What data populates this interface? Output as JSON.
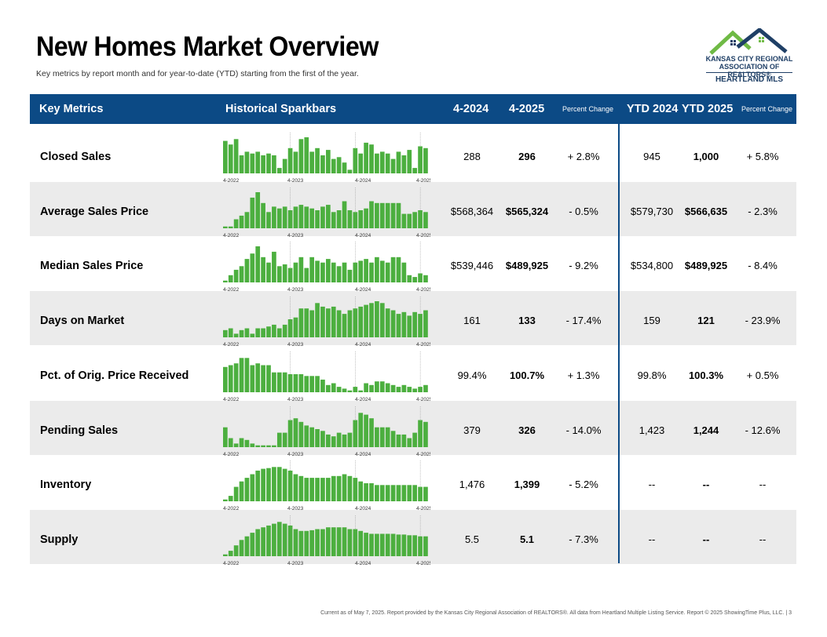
{
  "page": {
    "title": "New Homes Market Overview",
    "subtitle": "Key metrics by report month and for year-to-date (YTD) starting from the first of the year.",
    "footer": "Current as of May 7, 2025.  Report provided by the Kansas City Regional Association of REALTORS®. All data from Heartland Multiple Listing Service. Report © 2025 ShowingTime Plus, LLC.  |  3"
  },
  "logo": {
    "line1": "KANSAS CITY REGIONAL",
    "line2": "ASSOCIATION OF REALTORS®",
    "line3": "HEARTLAND MLS",
    "colors": {
      "green": "#6fba45",
      "navy": "#1f3f66"
    }
  },
  "header": {
    "key_metrics": "Key Metrics",
    "sparkbars": "Historical Sparkbars",
    "col_2024": "4-2024",
    "col_2025": "4-2025",
    "pct_change": "Percent Change",
    "ytd_2024": "YTD 2024",
    "ytd_2025": "YTD 2025",
    "ytd_pct_change": "Percent Change"
  },
  "colors": {
    "header_bg": "#0c4a85",
    "bar_green": "#4caf3f",
    "row_alt": "#ebebeb"
  },
  "chart_data": {
    "type": "bar",
    "tick_labels": [
      "4-2022",
      "4-2023",
      "4-2024",
      "4-2025"
    ],
    "rows": [
      {
        "metric": "Closed Sales",
        "current_2024": "288",
        "current_2025": "296",
        "pct_change": "+ 2.8%",
        "ytd_2024": "945",
        "ytd_2025": "1,000",
        "ytd_pct_change": "+ 5.8%",
        "values": [
          0.9,
          0.8,
          0.95,
          0.5,
          0.6,
          0.55,
          0.6,
          0.5,
          0.55,
          0.5,
          0.15,
          0.4,
          0.7,
          0.6,
          0.95,
          1.0,
          0.6,
          0.7,
          0.5,
          0.65,
          0.4,
          0.45,
          0.3,
          0.1,
          0.7,
          0.55,
          0.85,
          0.8,
          0.55,
          0.6,
          0.55,
          0.4,
          0.6,
          0.5,
          0.65,
          0.15,
          0.75,
          0.7
        ]
      },
      {
        "metric": "Average Sales Price",
        "current_2024": "$568,364",
        "current_2025": "$565,324",
        "pct_change": "- 0.5%",
        "ytd_2024": "$579,730",
        "ytd_2025": "$566,635",
        "ytd_pct_change": "- 2.3%",
        "values": [
          0.05,
          0.05,
          0.25,
          0.35,
          0.45,
          0.85,
          1.0,
          0.7,
          0.45,
          0.6,
          0.55,
          0.6,
          0.5,
          0.6,
          0.65,
          0.6,
          0.55,
          0.5,
          0.6,
          0.65,
          0.45,
          0.5,
          0.75,
          0.5,
          0.45,
          0.5,
          0.55,
          0.75,
          0.7,
          0.7,
          0.7,
          0.7,
          0.7,
          0.4,
          0.4,
          0.45,
          0.5,
          0.45
        ]
      },
      {
        "metric": "Median Sales Price",
        "current_2024": "$539,446",
        "current_2025": "$489,925",
        "pct_change": "- 9.2%",
        "ytd_2024": "$534,800",
        "ytd_2025": "$489,925",
        "ytd_pct_change": "- 8.4%",
        "values": [
          0.05,
          0.2,
          0.35,
          0.45,
          0.65,
          0.8,
          1.0,
          0.7,
          0.55,
          0.85,
          0.45,
          0.5,
          0.4,
          0.55,
          0.7,
          0.4,
          0.7,
          0.6,
          0.55,
          0.65,
          0.55,
          0.45,
          0.55,
          0.35,
          0.55,
          0.6,
          0.65,
          0.55,
          0.7,
          0.6,
          0.55,
          0.7,
          0.7,
          0.55,
          0.2,
          0.15,
          0.25,
          0.2
        ]
      },
      {
        "metric": "Days on Market",
        "current_2024": "161",
        "current_2025": "133",
        "pct_change": "- 17.4%",
        "ytd_2024": "159",
        "ytd_2025": "121",
        "ytd_pct_change": "- 23.9%",
        "values": [
          0.2,
          0.25,
          0.1,
          0.2,
          0.25,
          0.1,
          0.25,
          0.25,
          0.3,
          0.35,
          0.25,
          0.35,
          0.5,
          0.55,
          0.8,
          0.8,
          0.75,
          0.95,
          0.85,
          0.8,
          0.85,
          0.75,
          0.65,
          0.75,
          0.8,
          0.85,
          0.9,
          0.95,
          1.0,
          0.95,
          0.8,
          0.75,
          0.65,
          0.7,
          0.6,
          0.7,
          0.65,
          0.75
        ]
      },
      {
        "metric": "Pct. of Orig. Price Received",
        "current_2024": "99.4%",
        "current_2025": "100.7%",
        "pct_change": "+ 1.3%",
        "ytd_2024": "99.8%",
        "ytd_2025": "100.3%",
        "ytd_pct_change": "+ 0.5%",
        "values": [
          0.7,
          0.75,
          0.8,
          0.95,
          0.95,
          0.75,
          0.8,
          0.75,
          0.75,
          0.55,
          0.55,
          0.55,
          0.5,
          0.5,
          0.5,
          0.45,
          0.45,
          0.45,
          0.35,
          0.2,
          0.25,
          0.15,
          0.1,
          0.05,
          0.15,
          0.05,
          0.25,
          0.2,
          0.3,
          0.3,
          0.25,
          0.2,
          0.15,
          0.2,
          0.15,
          0.1,
          0.15,
          0.2
        ]
      },
      {
        "metric": "Pending Sales",
        "current_2024": "379",
        "current_2025": "326",
        "pct_change": "- 14.0%",
        "ytd_2024": "1,423",
        "ytd_2025": "1,244",
        "ytd_pct_change": "- 12.6%",
        "values": [
          0.55,
          0.25,
          0.1,
          0.25,
          0.2,
          0.1,
          0.05,
          0.05,
          0.05,
          0.05,
          0.4,
          0.4,
          0.75,
          0.8,
          0.7,
          0.6,
          0.55,
          0.5,
          0.45,
          0.35,
          0.3,
          0.4,
          0.35,
          0.4,
          0.75,
          0.95,
          0.9,
          0.8,
          0.55,
          0.55,
          0.55,
          0.45,
          0.35,
          0.35,
          0.25,
          0.4,
          0.75,
          0.7
        ]
      },
      {
        "metric": "Inventory",
        "current_2024": "1,476",
        "current_2025": "1,399",
        "pct_change": "- 5.2%",
        "ytd_2024": "--",
        "ytd_2025": "--",
        "ytd_pct_change": "--",
        "values": [
          0.05,
          0.15,
          0.4,
          0.55,
          0.65,
          0.75,
          0.85,
          0.9,
          0.92,
          0.95,
          0.95,
          0.9,
          0.85,
          0.75,
          0.7,
          0.65,
          0.65,
          0.65,
          0.65,
          0.65,
          0.7,
          0.7,
          0.75,
          0.7,
          0.65,
          0.55,
          0.5,
          0.5,
          0.45,
          0.45,
          0.45,
          0.45,
          0.45,
          0.45,
          0.45,
          0.45,
          0.4,
          0.4
        ]
      },
      {
        "metric": "Supply",
        "current_2024": "5.5",
        "current_2025": "5.1",
        "pct_change": "- 7.3%",
        "ytd_2024": "--",
        "ytd_2025": "--",
        "ytd_pct_change": "--",
        "values": [
          0.05,
          0.15,
          0.3,
          0.45,
          0.55,
          0.65,
          0.75,
          0.8,
          0.85,
          0.9,
          0.95,
          0.9,
          0.85,
          0.75,
          0.7,
          0.7,
          0.72,
          0.75,
          0.75,
          0.8,
          0.8,
          0.8,
          0.8,
          0.75,
          0.75,
          0.7,
          0.65,
          0.62,
          0.62,
          0.62,
          0.62,
          0.62,
          0.6,
          0.6,
          0.58,
          0.58,
          0.55,
          0.55
        ]
      }
    ]
  }
}
